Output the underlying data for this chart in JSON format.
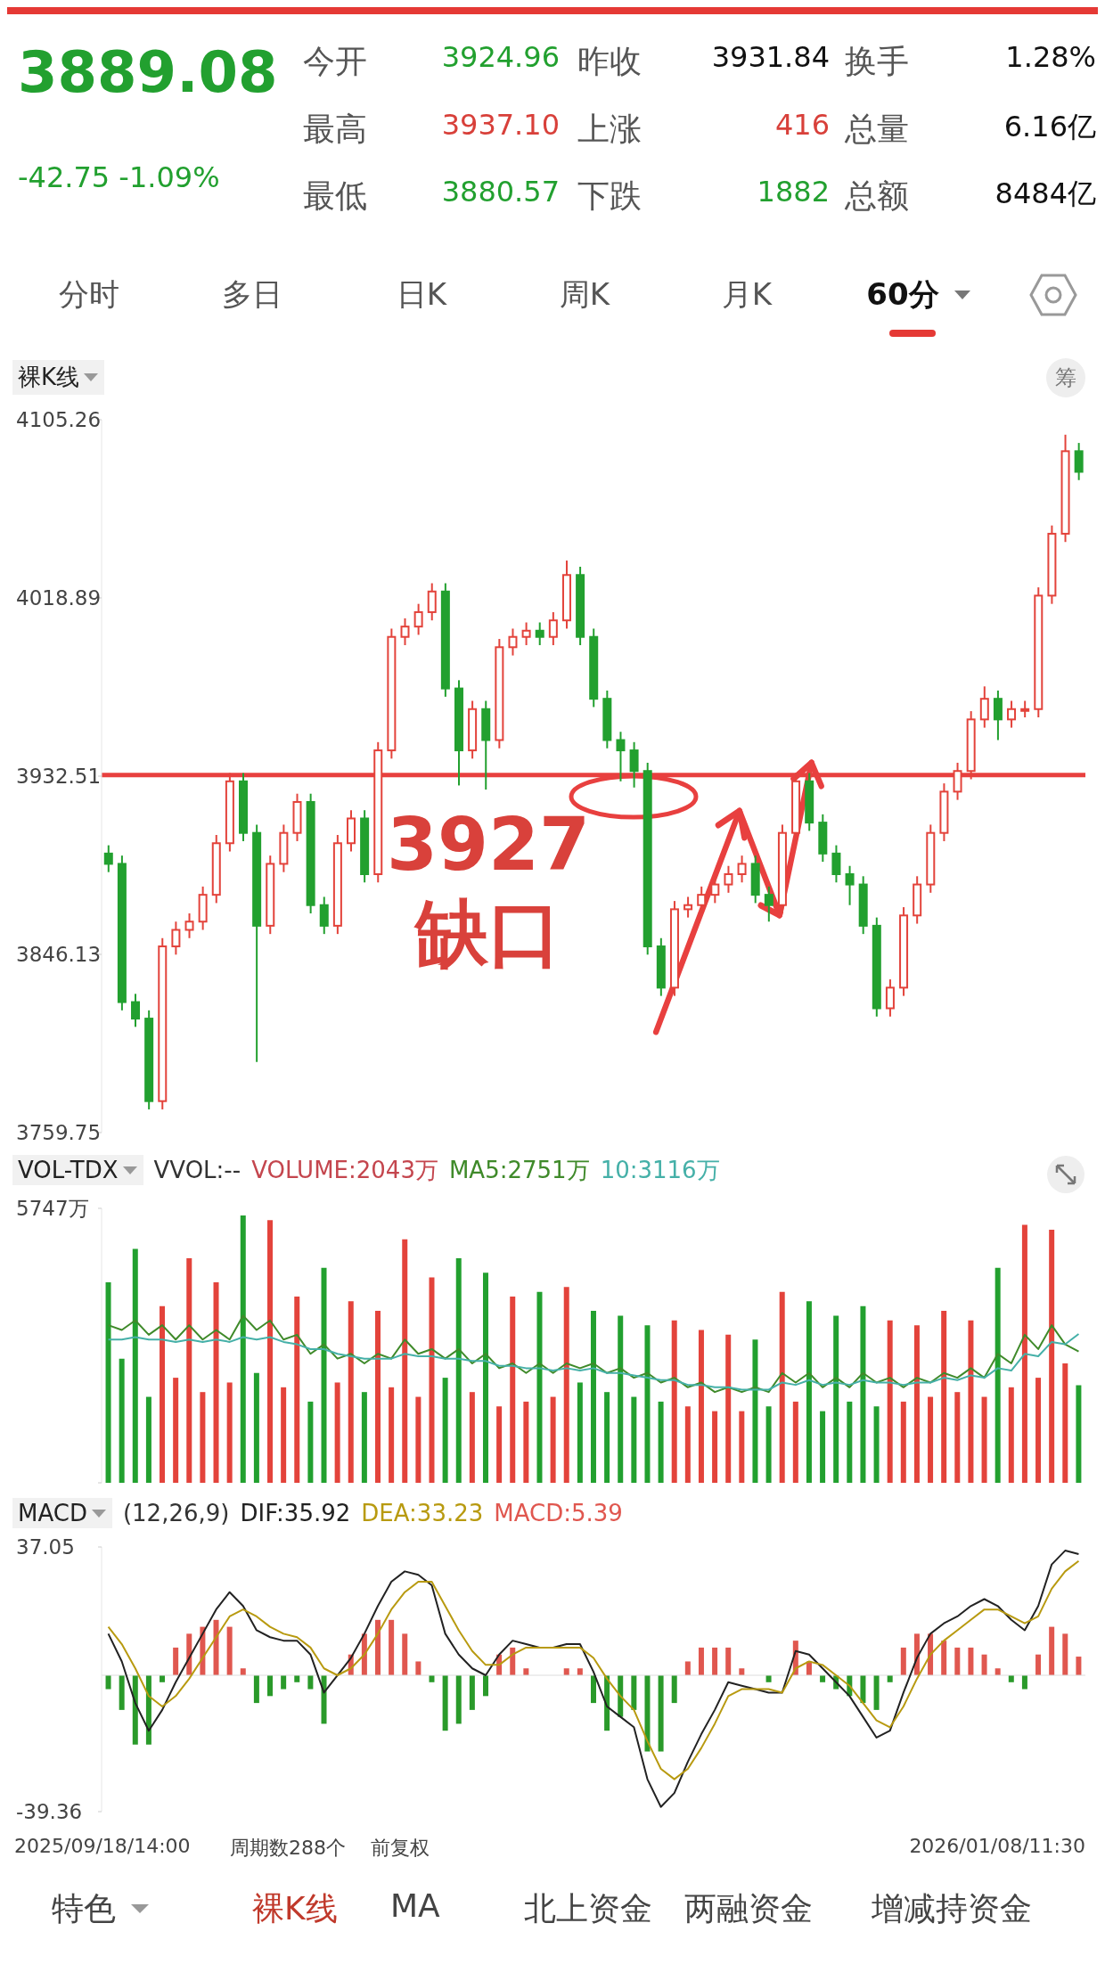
{
  "chart_data": [
    {
      "type": "other",
      "annotations": [
        "3889.08",
        "-42.75 -1.09%",
        "今开",
        "3924.96",
        "昨收",
        "3931.84",
        "换手",
        "1.28%",
        "最高",
        "3937.10",
        "上涨",
        "416",
        "总量",
        "6.16亿",
        "最低",
        "3880.57",
        "下跌",
        "1882",
        "总额",
        "8484亿",
        "分时",
        "多日",
        "日K",
        "周K",
        "月K",
        "60分"
      ]
    },
    {
      "type": "candlestick",
      "title": "裸K线",
      "categories": [
        null,
        null,
        null,
        null,
        null,
        null,
        null,
        null,
        null,
        null,
        null,
        null,
        null,
        null,
        null,
        null,
        null,
        null,
        null,
        null,
        null,
        null,
        null,
        null,
        null,
        null,
        null,
        null,
        null,
        null,
        null,
        null,
        null,
        null,
        null,
        null,
        null,
        null,
        null,
        null,
        null,
        null,
        null,
        null,
        null,
        null,
        null,
        null,
        null,
        null,
        null,
        null,
        null,
        null,
        null,
        null,
        null,
        null,
        null,
        null,
        null,
        null,
        null,
        null,
        null,
        null,
        null,
        null,
        null,
        null,
        null,
        null,
        null
      ],
      "ohlc": [
        [
          3895,
          3899,
          3886,
          3890
        ],
        [
          3890,
          3894,
          3819,
          3823
        ],
        [
          3823,
          3827,
          3811,
          3815
        ],
        [
          3815,
          3819,
          3771,
          3775
        ],
        [
          3775,
          3854,
          3771,
          3850
        ],
        [
          3850,
          3862,
          3846,
          3858
        ],
        [
          3858,
          3866,
          3854,
          3862
        ],
        [
          3862,
          3879,
          3858,
          3875
        ],
        [
          3875,
          3904,
          3871,
          3900
        ],
        [
          3900,
          3934,
          3896,
          3930
        ],
        [
          3930,
          3934,
          3901,
          3905
        ],
        [
          3905,
          3909,
          3794,
          3860
        ],
        [
          3860,
          3894,
          3856,
          3890
        ],
        [
          3890,
          3909,
          3886,
          3905
        ],
        [
          3905,
          3924,
          3901,
          3920
        ],
        [
          3920,
          3924,
          3866,
          3870
        ],
        [
          3870,
          3874,
          3856,
          3860
        ],
        [
          3860,
          3904,
          3856,
          3900
        ],
        [
          3900,
          3916,
          3896,
          3912
        ],
        [
          3912,
          3916,
          3881,
          3885
        ],
        [
          3885,
          3949,
          3881,
          3945
        ],
        [
          3945,
          4004,
          3941,
          4000
        ],
        [
          4000,
          4009,
          3996,
          4005
        ],
        [
          4005,
          4016,
          4001,
          4012
        ],
        [
          4012,
          4026,
          4008,
          4022
        ],
        [
          4022,
          4026,
          3971,
          3975
        ],
        [
          3975,
          3979,
          3928,
          3945
        ],
        [
          3945,
          3969,
          3941,
          3965
        ],
        [
          3965,
          3969,
          3926,
          3950
        ],
        [
          3950,
          3999,
          3946,
          3995
        ],
        [
          3995,
          4004,
          3991,
          4000
        ],
        [
          4000,
          4007,
          3996,
          4003
        ],
        [
          4003,
          4007,
          3996,
          4000
        ],
        [
          4000,
          4012,
          3996,
          4008
        ],
        [
          4008,
          4037,
          4004,
          4030
        ],
        [
          4030,
          4034,
          3996,
          4000
        ],
        [
          4000,
          4004,
          3966,
          3970
        ],
        [
          3970,
          3974,
          3946,
          3950
        ],
        [
          3950,
          3954,
          3930,
          3945
        ],
        [
          3945,
          3949,
          3927,
          3935
        ],
        [
          3935,
          3939,
          3846,
          3850
        ],
        [
          3850,
          3854,
          3826,
          3830
        ],
        [
          3830,
          3872,
          3826,
          3868
        ],
        [
          3868,
          3874,
          3864,
          3870
        ],
        [
          3870,
          3879,
          3866,
          3875
        ],
        [
          3875,
          3884,
          3871,
          3880
        ],
        [
          3880,
          3889,
          3876,
          3885
        ],
        [
          3885,
          3894,
          3881,
          3890
        ],
        [
          3890,
          3894,
          3871,
          3875
        ],
        [
          3875,
          3879,
          3862,
          3870
        ],
        [
          3870,
          3909,
          3866,
          3905
        ],
        [
          3905,
          3934,
          3901,
          3930
        ],
        [
          3930,
          3934,
          3906,
          3910
        ],
        [
          3910,
          3914,
          3891,
          3895
        ],
        [
          3895,
          3899,
          3881,
          3885
        ],
        [
          3885,
          3889,
          3870,
          3880
        ],
        [
          3880,
          3884,
          3856,
          3860
        ],
        [
          3860,
          3864,
          3816,
          3820
        ],
        [
          3820,
          3834,
          3816,
          3830
        ],
        [
          3830,
          3869,
          3826,
          3865
        ],
        [
          3865,
          3884,
          3861,
          3880
        ],
        [
          3880,
          3909,
          3876,
          3905
        ],
        [
          3905,
          3929,
          3901,
          3925
        ],
        [
          3925,
          3939,
          3921,
          3935
        ],
        [
          3935,
          3964,
          3931,
          3960
        ],
        [
          3960,
          3976,
          3956,
          3970
        ],
        [
          3970,
          3974,
          3950,
          3960
        ],
        [
          3960,
          3969,
          3956,
          3965
        ],
        [
          3965,
          3969,
          3961,
          3965
        ],
        [
          3965,
          4024,
          3961,
          4020
        ],
        [
          4020,
          4054,
          4016,
          4050
        ],
        [
          4050,
          4098,
          4046,
          4090
        ],
        [
          4090,
          4094,
          4076,
          4080
        ]
      ],
      "colors": [
        "#22a02f",
        "#22a02f",
        "#22a02f",
        "#22a02f",
        "#e3433b",
        "#e3433b",
        "#e3433b",
        "#e3433b",
        "#e3433b",
        "#e3433b",
        "#22a02f",
        "#22a02f",
        "#e3433b",
        "#e3433b",
        "#e3433b",
        "#22a02f",
        "#22a02f",
        "#e3433b",
        "#e3433b",
        "#22a02f",
        "#e3433b",
        "#e3433b",
        "#e3433b",
        "#e3433b",
        "#e3433b",
        "#22a02f",
        "#22a02f",
        "#e3433b",
        "#22a02f",
        "#e3433b",
        "#e3433b",
        "#e3433b",
        "#22a02f",
        "#e3433b",
        "#e3433b",
        "#22a02f",
        "#22a02f",
        "#22a02f",
        "#22a02f",
        "#22a02f",
        "#22a02f",
        "#22a02f",
        "#e3433b",
        "#e3433b",
        "#e3433b",
        "#e3433b",
        "#e3433b",
        "#e3433b",
        "#22a02f",
        "#22a02f",
        "#e3433b",
        "#e3433b",
        "#22a02f",
        "#22a02f",
        "#22a02f",
        "#22a02f",
        "#22a02f",
        "#22a02f",
        "#e3433b",
        "#e3433b",
        "#e3433b",
        "#e3433b",
        "#e3433b",
        "#e3433b",
        "#e3433b",
        "#e3433b",
        "#22a02f",
        "#e3433b",
        "#e3433b",
        "#e3433b",
        "#e3433b",
        "#e3433b",
        "#22a02f"
      ],
      "ylim": [
        3759.75,
        4105.26
      ],
      "yticks": [
        3759.75,
        3846.13,
        3932.51,
        4018.89,
        4105.26
      ],
      "ref_lines": [
        {
          "axis": "y",
          "value": 3933,
          "color": "#e8403f"
        }
      ],
      "annotations": [
        "3927 缺口",
        "筹"
      ]
    },
    {
      "type": "bar",
      "title": "VOL-TDX",
      "subtitle": "VVOL:--",
      "legend": "top left",
      "marker": "none",
      "categories": [
        null,
        null,
        null,
        null,
        null,
        null,
        null,
        null,
        null,
        null,
        null,
        null,
        null,
        null,
        null,
        null,
        null,
        null,
        null,
        null,
        null,
        null,
        null,
        null,
        null,
        null,
        null,
        null,
        null,
        null,
        null,
        null,
        null,
        null,
        null,
        null,
        null,
        null,
        null,
        null,
        null,
        null,
        null,
        null,
        null,
        null,
        null,
        null,
        null,
        null,
        null,
        null,
        null,
        null,
        null,
        null,
        null,
        null,
        null,
        null,
        null,
        null,
        null,
        null,
        null,
        null,
        null,
        null,
        null,
        null,
        null,
        null,
        null
      ],
      "ylim": [
        0,
        5747
      ],
      "yticks": [
        {
          "value": 0,
          "label": null
        },
        {
          "value": 5747,
          "label": "5747万"
        }
      ],
      "series": [
        {
          "name": "VOLUME:2043万",
          "type": "bar",
          "color": "#c4464e",
          "values": [
            4200,
            2600,
            4900,
            1800,
            3700,
            2200,
            4700,
            1900,
            4200,
            2100,
            5600,
            2300,
            5500,
            2000,
            3900,
            1700,
            4500,
            2100,
            3800,
            1900,
            3600,
            2000,
            5100,
            1800,
            4300,
            2200,
            4700,
            1900,
            4400,
            1600,
            3900,
            1700,
            4000,
            1800,
            4100,
            2100,
            3600,
            1900,
            3500,
            1800,
            3300,
            1700,
            3400,
            1600,
            3200,
            1500,
            3100,
            1500,
            3000,
            1600,
            4000,
            1700,
            3800,
            1500,
            3500,
            1700,
            3700,
            1600,
            3400,
            1700,
            3300,
            1800,
            3600,
            1900,
            3400,
            1800,
            4500,
            2000,
            5400,
            2200,
            5300,
            2500,
            2043
          ],
          "colors": [
            "#22a02f",
            "#22a02f",
            "#22a02f",
            "#22a02f",
            "#e3433b",
            "#e3433b",
            "#e3433b",
            "#e3433b",
            "#e3433b",
            "#e3433b",
            "#22a02f",
            "#22a02f",
            "#e3433b",
            "#e3433b",
            "#e3433b",
            "#22a02f",
            "#22a02f",
            "#e3433b",
            "#e3433b",
            "#22a02f",
            "#e3433b",
            "#e3433b",
            "#e3433b",
            "#e3433b",
            "#e3433b",
            "#22a02f",
            "#22a02f",
            "#e3433b",
            "#22a02f",
            "#e3433b",
            "#e3433b",
            "#e3433b",
            "#22a02f",
            "#e3433b",
            "#e3433b",
            "#22a02f",
            "#22a02f",
            "#22a02f",
            "#22a02f",
            "#22a02f",
            "#22a02f",
            "#22a02f",
            "#e3433b",
            "#e3433b",
            "#e3433b",
            "#e3433b",
            "#e3433b",
            "#e3433b",
            "#22a02f",
            "#22a02f",
            "#e3433b",
            "#e3433b",
            "#22a02f",
            "#22a02f",
            "#22a02f",
            "#22a02f",
            "#22a02f",
            "#22a02f",
            "#e3433b",
            "#e3433b",
            "#e3433b",
            "#e3433b",
            "#e3433b",
            "#e3433b",
            "#e3433b",
            "#e3433b",
            "#22a02f",
            "#e3433b",
            "#e3433b",
            "#e3433b",
            "#e3433b",
            "#e3433b",
            "#22a02f"
          ]
        },
        {
          "name": "MA5:2751万",
          "type": "line",
          "color": "#3f8a2a",
          "values": [
            3300,
            3200,
            3400,
            3100,
            3300,
            3000,
            3300,
            3000,
            3200,
            3000,
            3500,
            3200,
            3400,
            3000,
            3100,
            2700,
            2900,
            2600,
            2700,
            2500,
            2700,
            2600,
            3000,
            2700,
            2800,
            2600,
            2800,
            2500,
            2700,
            2400,
            2500,
            2300,
            2500,
            2300,
            2500,
            2400,
            2500,
            2300,
            2400,
            2200,
            2300,
            2100,
            2200,
            2000,
            2100,
            1900,
            2000,
            1900,
            2000,
            1900,
            2300,
            2100,
            2300,
            2000,
            2200,
            2000,
            2300,
            2100,
            2200,
            2000,
            2200,
            2100,
            2300,
            2200,
            2400,
            2200,
            2700,
            2500,
            3100,
            2800,
            3300,
            2900,
            2751
          ]
        },
        {
          "name": "10:3116万",
          "type": "line",
          "color": "#45b0a8",
          "values": [
            3000,
            3000,
            3050,
            3000,
            3000,
            2950,
            3000,
            2950,
            3000,
            2950,
            3050,
            3000,
            3050,
            2950,
            2900,
            2800,
            2800,
            2700,
            2650,
            2600,
            2600,
            2600,
            2700,
            2650,
            2650,
            2600,
            2600,
            2550,
            2550,
            2450,
            2450,
            2400,
            2400,
            2350,
            2400,
            2350,
            2400,
            2300,
            2300,
            2250,
            2200,
            2150,
            2150,
            2050,
            2050,
            2000,
            2000,
            1950,
            1950,
            1950,
            2100,
            2050,
            2150,
            2050,
            2100,
            2050,
            2150,
            2100,
            2100,
            2050,
            2100,
            2100,
            2200,
            2150,
            2250,
            2200,
            2400,
            2350,
            2700,
            2650,
            2950,
            2900,
            3116
          ]
        }
      ]
    },
    {
      "type": "bar",
      "title": "MACD",
      "subtitle": "(12,26,9)",
      "legend": "top left",
      "marker": "none",
      "categories": [
        null,
        null,
        null,
        null,
        null,
        null,
        null,
        null,
        null,
        null,
        null,
        null,
        null,
        null,
        null,
        null,
        null,
        null,
        null,
        null,
        null,
        null,
        null,
        null,
        null,
        null,
        null,
        null,
        null,
        null,
        null,
        null,
        null,
        null,
        null,
        null,
        null,
        null,
        null,
        null,
        null,
        null,
        null,
        null,
        null,
        null,
        null,
        null,
        null,
        null,
        null,
        null,
        null,
        null,
        null,
        null,
        null,
        null,
        null,
        null,
        null,
        null,
        null,
        null,
        null,
        null,
        null,
        null,
        null,
        null,
        null,
        null,
        null
      ],
      "ylim": [
        -39.36,
        37.05
      ],
      "yticks": [
        -39.36,
        37.05
      ],
      "series": [
        {
          "name": "DIF:35.92",
          "type": "line",
          "color": "#222222",
          "values": [
            12,
            4,
            -8,
            -16,
            -10,
            -2,
            5,
            12,
            19,
            24,
            20,
            13,
            11,
            10,
            10,
            6,
            -5,
            0,
            5,
            12,
            20,
            27,
            30,
            29,
            26,
            12,
            6,
            2,
            0,
            6,
            10,
            9,
            8,
            8,
            9,
            9,
            1,
            -9,
            -12,
            -15,
            -30,
            -38,
            -34,
            -25,
            -17,
            -10,
            -2,
            -3,
            -4,
            -5,
            -5,
            7,
            6,
            2,
            -2,
            -6,
            -12,
            -18,
            -16,
            -5,
            5,
            12,
            15,
            17,
            20,
            22,
            20,
            16,
            13,
            20,
            32,
            36,
            35
          ]
        },
        {
          "name": "DEA:33.23",
          "type": "line",
          "color": "#b89a10",
          "values": [
            14,
            9,
            2,
            -6,
            -9,
            -6,
            -1,
            5,
            11,
            17,
            19,
            17,
            14,
            12,
            11,
            8,
            2,
            0,
            2,
            6,
            12,
            19,
            24,
            27,
            27,
            20,
            13,
            7,
            3,
            3,
            6,
            8,
            8,
            8,
            8,
            8,
            5,
            -1,
            -6,
            -10,
            -19,
            -27,
            -30,
            -27,
            -21,
            -14,
            -6,
            -4,
            -4,
            -4,
            -5,
            2,
            4,
            3,
            0,
            -3,
            -8,
            -13,
            -15,
            -9,
            -1,
            6,
            10,
            13,
            16,
            19,
            19,
            17,
            15,
            17,
            25,
            30,
            33
          ]
        },
        {
          "name": "MACD:5.39",
          "type": "bar",
          "color": "#e0574f",
          "values": [
            -4,
            -10,
            -20,
            -20,
            -2,
            8,
            12,
            14,
            16,
            14,
            2,
            -8,
            -6,
            -4,
            -2,
            -4,
            -14,
            0,
            6,
            12,
            16,
            16,
            12,
            4,
            -2,
            -16,
            -14,
            -10,
            -6,
            6,
            8,
            2,
            0,
            0,
            2,
            2,
            -8,
            -16,
            -12,
            -10,
            -22,
            -22,
            -8,
            4,
            8,
            8,
            8,
            2,
            0,
            -2,
            0,
            10,
            4,
            -2,
            -4,
            -6,
            -8,
            -10,
            -2,
            8,
            12,
            12,
            10,
            8,
            8,
            6,
            2,
            -2,
            -4,
            6,
            14,
            12,
            5.39
          ],
          "colors": [
            "#2a9a2a",
            "#2a9a2a",
            "#2a9a2a",
            "#2a9a2a",
            "#2a9a2a",
            "#e0574f",
            "#e0574f",
            "#e0574f",
            "#e0574f",
            "#e0574f",
            "#e0574f",
            "#2a9a2a",
            "#2a9a2a",
            "#2a9a2a",
            "#2a9a2a",
            "#2a9a2a",
            "#2a9a2a",
            "#e0574f",
            "#e0574f",
            "#e0574f",
            "#e0574f",
            "#e0574f",
            "#e0574f",
            "#e0574f",
            "#2a9a2a",
            "#2a9a2a",
            "#2a9a2a",
            "#2a9a2a",
            "#2a9a2a",
            "#e0574f",
            "#e0574f",
            "#e0574f",
            "#e0574f",
            "#e0574f",
            "#e0574f",
            "#e0574f",
            "#2a9a2a",
            "#2a9a2a",
            "#2a9a2a",
            "#2a9a2a",
            "#2a9a2a",
            "#2a9a2a",
            "#2a9a2a",
            "#e0574f",
            "#e0574f",
            "#e0574f",
            "#e0574f",
            "#e0574f",
            "#e0574f",
            "#2a9a2a",
            "#e0574f",
            "#e0574f",
            "#e0574f",
            "#2a9a2a",
            "#2a9a2a",
            "#2a9a2a",
            "#2a9a2a",
            "#2a9a2a",
            "#2a9a2a",
            "#e0574f",
            "#e0574f",
            "#e0574f",
            "#e0574f",
            "#e0574f",
            "#e0574f",
            "#e0574f",
            "#e0574f",
            "#2a9a2a",
            "#2a9a2a",
            "#e0574f",
            "#e0574f",
            "#e0574f",
            "#e0574f"
          ]
        }
      ],
      "annotations": [
        "2025/09/18/14:00",
        "周期数288个",
        "前复权",
        "2026/01/08/11:30"
      ]
    },
    {
      "type": "other",
      "annotations": [
        "特色",
        "裸K线",
        "MA",
        "北上资金",
        "两融资金",
        "增减持资金"
      ]
    }
  ]
}
